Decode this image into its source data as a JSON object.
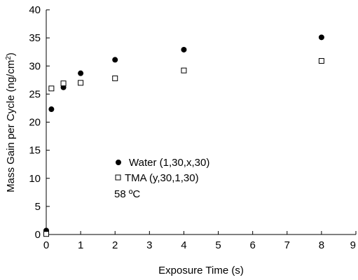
{
  "chart_data": {
    "type": "scatter",
    "xlabel": "Exposure Time (s)",
    "ylabel_main": "Mass Gain per Cycle (ng/cm",
    "ylabel_sup": "2",
    "ylabel_close": ")",
    "xlim": [
      0,
      9
    ],
    "ylim": [
      0,
      40
    ],
    "xticks": [
      0,
      1,
      2,
      3,
      4,
      5,
      6,
      7,
      8,
      9
    ],
    "yticks": [
      0,
      5,
      10,
      15,
      20,
      25,
      30,
      35,
      40
    ],
    "grid": false,
    "legend_position": "center",
    "series": [
      {
        "name": "Water (1,30,x,30)",
        "marker": "filled-circle",
        "color": "#000000",
        "points": [
          {
            "x": 0,
            "y": 0.7
          },
          {
            "x": 0.15,
            "y": 22.3
          },
          {
            "x": 0.5,
            "y": 26.2
          },
          {
            "x": 1,
            "y": 28.7
          },
          {
            "x": 2,
            "y": 31.1
          },
          {
            "x": 4,
            "y": 32.9
          },
          {
            "x": 8,
            "y": 35.1
          }
        ]
      },
      {
        "name": "TMA (y,30,1,30)",
        "marker": "open-square",
        "color": "#000000",
        "points": [
          {
            "x": 0,
            "y": 0.1
          },
          {
            "x": 0.15,
            "y": 26.0
          },
          {
            "x": 0.5,
            "y": 26.9
          },
          {
            "x": 1,
            "y": 27.0
          },
          {
            "x": 2,
            "y": 27.8
          },
          {
            "x": 4,
            "y": 29.2
          },
          {
            "x": 8,
            "y": 30.9
          }
        ]
      }
    ],
    "annotation": "58 ºC"
  }
}
